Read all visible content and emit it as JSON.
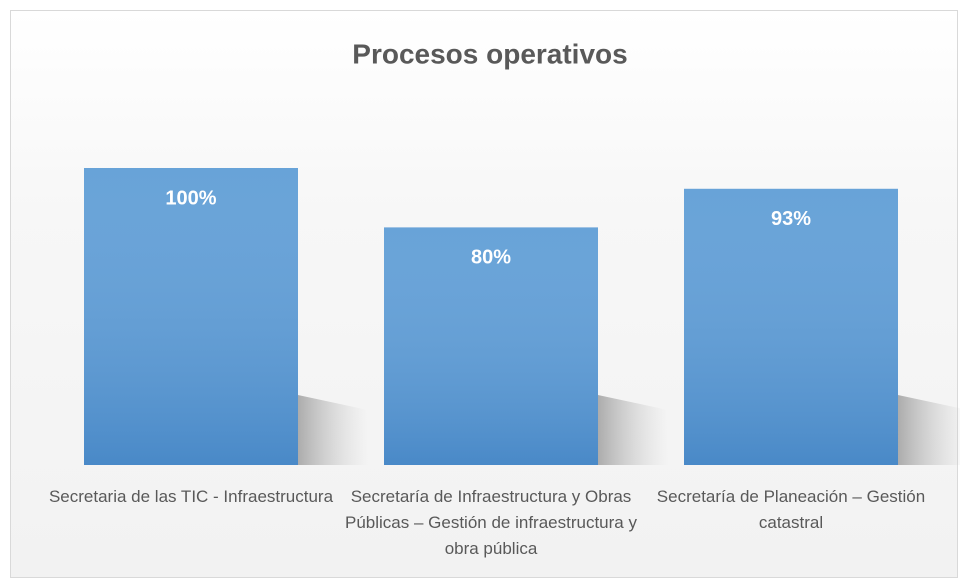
{
  "chart_data": {
    "type": "bar",
    "title": "Procesos operativos",
    "categories": [
      "Secretaria de las TIC - Infraestructura",
      "Secretaría de Infraestructura y Obras Públicas – Gestión de infraestructura y obra pública",
      "Secretaría de Planeación – Gestión catastral"
    ],
    "values": [
      100,
      80,
      93
    ],
    "value_labels": [
      "100%",
      "80%",
      "93%"
    ],
    "color": "#5b9bd5"
  }
}
